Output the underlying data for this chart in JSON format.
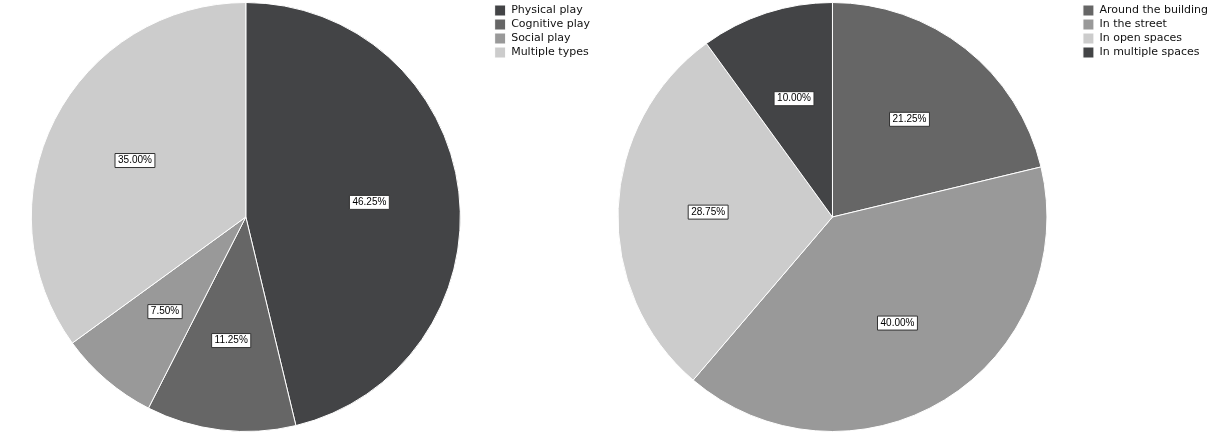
{
  "chart_data": [
    {
      "type": "pie",
      "categories": [
        "Physical play",
        "Cognitive play",
        "Social play",
        "Multiple types"
      ],
      "values": [
        46.25,
        11.25,
        7.5,
        35
      ],
      "colors": [
        "#434446",
        "#666666",
        "#999999",
        "#cccccc"
      ],
      "value_labels": [
        "46.25%",
        "11.25%",
        "7.50%",
        "35.00%"
      ],
      "legend": "top right"
    },
    {
      "type": "pie",
      "categories": [
        "Around the building",
        "In the street",
        "In open spaces",
        "In multiple spaces"
      ],
      "values": [
        21.25,
        40,
        28.75,
        10
      ],
      "colors": [
        "#666666",
        "#999999",
        "#cccccc",
        "#434446"
      ],
      "value_labels": [
        "21.25%",
        "40.00%",
        "28.75%",
        "10.00%"
      ],
      "legend": "top right"
    }
  ]
}
